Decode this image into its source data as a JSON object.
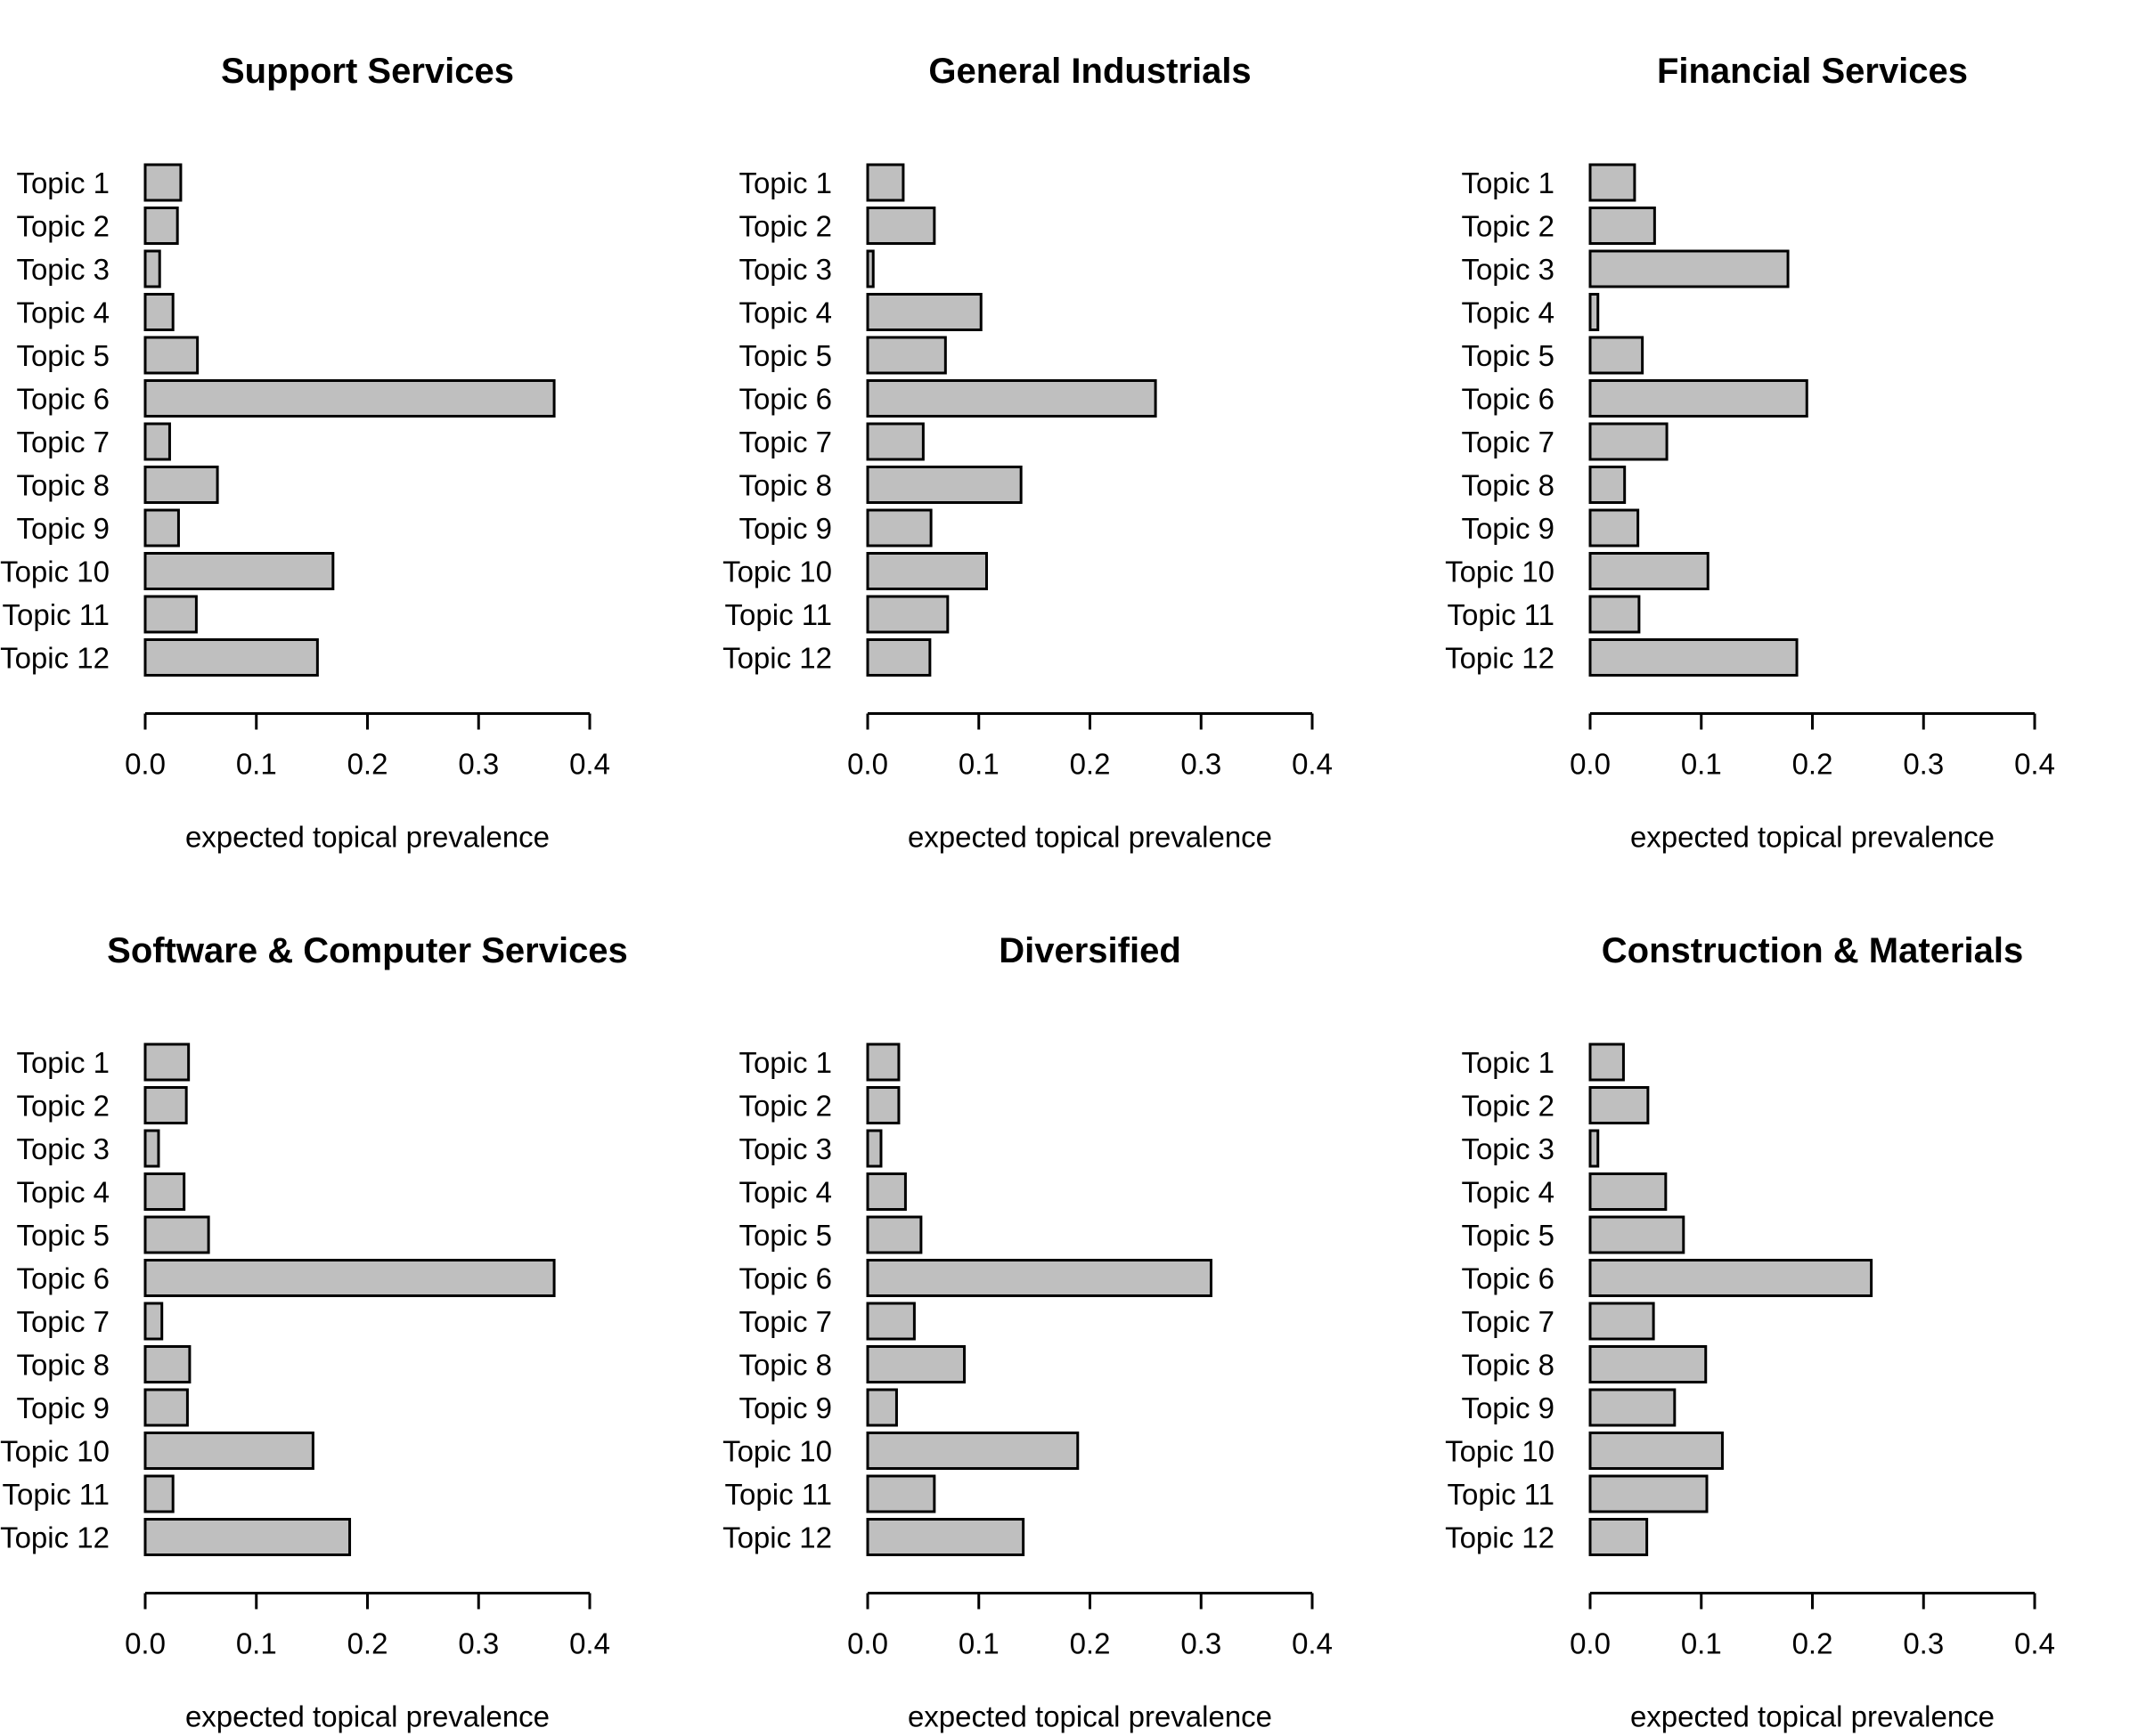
{
  "chart_data": [
    {
      "type": "bar",
      "orientation": "horizontal",
      "title": "Support Services",
      "xlabel": "expected topical prevalence",
      "categories": [
        "Topic 1",
        "Topic 2",
        "Topic 3",
        "Topic 4",
        "Topic 5",
        "Topic 6",
        "Topic 7",
        "Topic 8",
        "Topic 9",
        "Topic 10",
        "Topic 11",
        "Topic 12"
      ],
      "values": [
        0.032,
        0.029,
        0.013,
        0.025,
        0.047,
        0.368,
        0.022,
        0.065,
        0.03,
        0.169,
        0.046,
        0.155
      ],
      "xlim": [
        0,
        0.4
      ],
      "xticks": [
        "0.0",
        "0.1",
        "0.2",
        "0.3",
        "0.4"
      ]
    },
    {
      "type": "bar",
      "orientation": "horizontal",
      "title": "General Industrials",
      "xlabel": "expected topical prevalence",
      "categories": [
        "Topic 1",
        "Topic 2",
        "Topic 3",
        "Topic 4",
        "Topic 5",
        "Topic 6",
        "Topic 7",
        "Topic 8",
        "Topic 9",
        "Topic 10",
        "Topic 11",
        "Topic 12"
      ],
      "values": [
        0.032,
        0.06,
        0.005,
        0.102,
        0.07,
        0.259,
        0.05,
        0.138,
        0.057,
        0.107,
        0.072,
        0.056
      ],
      "xlim": [
        0,
        0.4
      ],
      "xticks": [
        "0.0",
        "0.1",
        "0.2",
        "0.3",
        "0.4"
      ]
    },
    {
      "type": "bar",
      "orientation": "horizontal",
      "title": "Financial Services",
      "xlabel": "expected topical prevalence",
      "categories": [
        "Topic 1",
        "Topic 2",
        "Topic 3",
        "Topic 4",
        "Topic 5",
        "Topic 6",
        "Topic 7",
        "Topic 8",
        "Topic 9",
        "Topic 10",
        "Topic 11",
        "Topic 12"
      ],
      "values": [
        0.04,
        0.058,
        0.178,
        0.007,
        0.047,
        0.195,
        0.069,
        0.031,
        0.043,
        0.106,
        0.044,
        0.186
      ],
      "xlim": [
        0,
        0.4
      ],
      "xticks": [
        "0.0",
        "0.1",
        "0.2",
        "0.3",
        "0.4"
      ]
    },
    {
      "type": "bar",
      "orientation": "horizontal",
      "title": "Software & Computer Services",
      "xlabel": "expected topical prevalence",
      "categories": [
        "Topic 1",
        "Topic 2",
        "Topic 3",
        "Topic 4",
        "Topic 5",
        "Topic 6",
        "Topic 7",
        "Topic 8",
        "Topic 9",
        "Topic 10",
        "Topic 11",
        "Topic 12"
      ],
      "values": [
        0.039,
        0.037,
        0.012,
        0.035,
        0.057,
        0.368,
        0.015,
        0.04,
        0.038,
        0.151,
        0.025,
        0.184
      ],
      "xlim": [
        0,
        0.4
      ],
      "xticks": [
        "0.0",
        "0.1",
        "0.2",
        "0.3",
        "0.4"
      ]
    },
    {
      "type": "bar",
      "orientation": "horizontal",
      "title": "Diversified",
      "xlabel": "expected topical prevalence",
      "categories": [
        "Topic 1",
        "Topic 2",
        "Topic 3",
        "Topic 4",
        "Topic 5",
        "Topic 6",
        "Topic 7",
        "Topic 8",
        "Topic 9",
        "Topic 10",
        "Topic 11",
        "Topic 12"
      ],
      "values": [
        0.028,
        0.028,
        0.012,
        0.034,
        0.048,
        0.309,
        0.042,
        0.087,
        0.026,
        0.189,
        0.06,
        0.14
      ],
      "xlim": [
        0,
        0.4
      ],
      "xticks": [
        "0.0",
        "0.1",
        "0.2",
        "0.3",
        "0.4"
      ]
    },
    {
      "type": "bar",
      "orientation": "horizontal",
      "title": "Construction & Materials",
      "xlabel": "expected topical prevalence",
      "categories": [
        "Topic 1",
        "Topic 2",
        "Topic 3",
        "Topic 4",
        "Topic 5",
        "Topic 6",
        "Topic 7",
        "Topic 8",
        "Topic 9",
        "Topic 10",
        "Topic 11",
        "Topic 12"
      ],
      "values": [
        0.03,
        0.052,
        0.007,
        0.068,
        0.084,
        0.253,
        0.057,
        0.104,
        0.076,
        0.119,
        0.105,
        0.051
      ],
      "xlim": [
        0,
        0.4
      ],
      "xticks": [
        "0.0",
        "0.1",
        "0.2",
        "0.3",
        "0.4"
      ]
    }
  ]
}
